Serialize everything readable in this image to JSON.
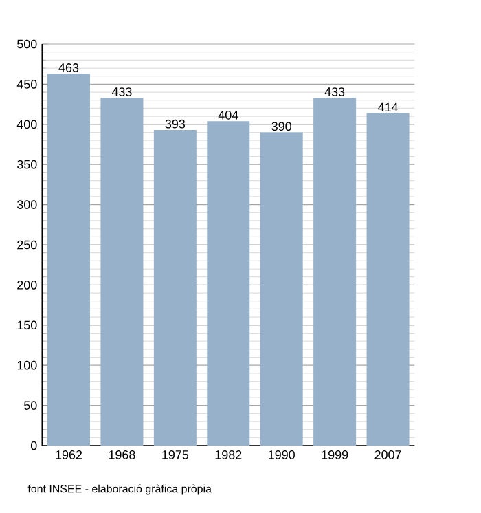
{
  "chart_data": {
    "type": "bar",
    "categories": [
      "1962",
      "1968",
      "1975",
      "1982",
      "1990",
      "1999",
      "2007"
    ],
    "values": [
      463,
      433,
      393,
      404,
      390,
      433,
      414
    ],
    "color": "#98b1cb",
    "ylim": [
      0,
      500
    ],
    "yticks": [
      0,
      50,
      100,
      150,
      200,
      250,
      300,
      350,
      400,
      450,
      500
    ],
    "grid": "y",
    "data_labels": true,
    "annotations": [
      "font INSEE - elaboració gràfica pròpia"
    ]
  }
}
